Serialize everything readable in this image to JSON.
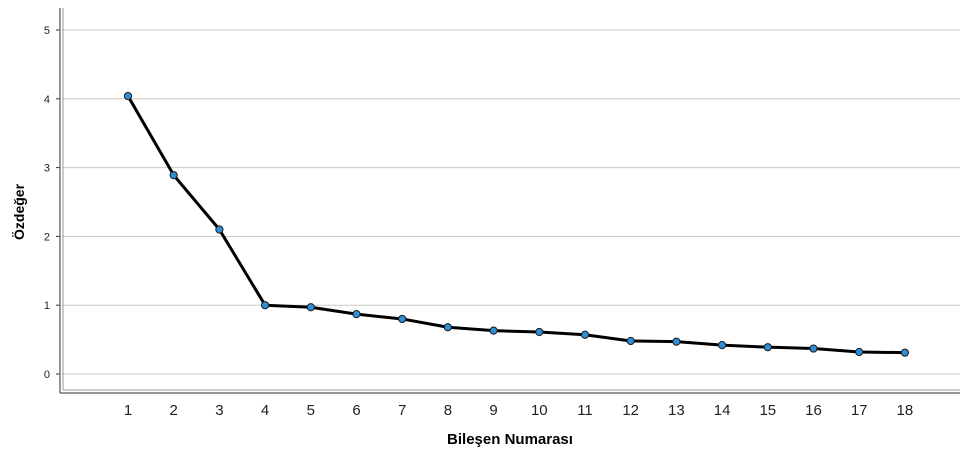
{
  "chart_data": {
    "type": "line",
    "title": "",
    "xlabel": "Bileşen Numarası",
    "ylabel": "Özdeğer",
    "x": [
      1,
      2,
      3,
      4,
      5,
      6,
      7,
      8,
      9,
      10,
      11,
      12,
      13,
      14,
      15,
      16,
      17,
      18
    ],
    "series": [
      {
        "values": [
          4.04,
          2.89,
          2.1,
          1.0,
          0.97,
          0.87,
          0.8,
          0.68,
          0.63,
          0.61,
          0.57,
          0.48,
          0.47,
          0.42,
          0.39,
          0.37,
          0.32,
          0.31
        ]
      }
    ],
    "xticks": [
      "1",
      "2",
      "3",
      "4",
      "5",
      "6",
      "7",
      "8",
      "9",
      "10",
      "11",
      "12",
      "13",
      "14",
      "15",
      "16",
      "17",
      "18"
    ],
    "yticks": [
      "0",
      "1",
      "2",
      "3",
      "4",
      "5"
    ],
    "ylim": [
      0,
      5
    ],
    "grid": true,
    "colors": {
      "line": "#000000",
      "marker": "#2e8fd6",
      "marker_edge": "#1a1a1a",
      "grid": "#c8c8c8"
    }
  }
}
